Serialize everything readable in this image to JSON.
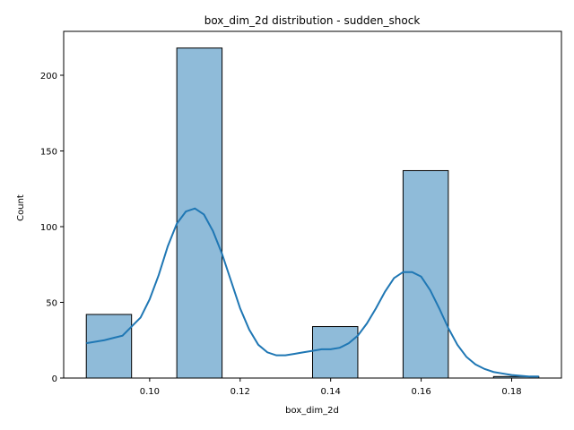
{
  "chart_data": {
    "type": "bar",
    "title": "box_dim_2d distribution - sudden_shock",
    "xlabel": "box_dim_2d",
    "ylabel": "Count",
    "xlim": [
      0.081,
      0.191
    ],
    "ylim": [
      0,
      229
    ],
    "xticks": [
      0.1,
      0.12,
      0.14,
      0.16,
      0.18
    ],
    "xtick_labels": [
      "0.10",
      "0.12",
      "0.14",
      "0.16",
      "0.18"
    ],
    "yticks": [
      0,
      50,
      100,
      150,
      200
    ],
    "ytick_labels": [
      "0",
      "50",
      "100",
      "150",
      "200"
    ],
    "bin_edges": [
      0.086,
      0.096,
      0.106,
      0.116,
      0.126,
      0.136,
      0.146,
      0.156,
      0.166,
      0.176,
      0.186
    ],
    "values": [
      42,
      0,
      218,
      0,
      0,
      34,
      0,
      137,
      0,
      1
    ],
    "kde": {
      "x": [
        0.086,
        0.09,
        0.094,
        0.098,
        0.1,
        0.102,
        0.104,
        0.106,
        0.108,
        0.11,
        0.112,
        0.114,
        0.116,
        0.118,
        0.12,
        0.122,
        0.124,
        0.126,
        0.128,
        0.13,
        0.132,
        0.134,
        0.136,
        0.138,
        0.14,
        0.142,
        0.144,
        0.146,
        0.148,
        0.15,
        0.152,
        0.154,
        0.156,
        0.158,
        0.16,
        0.162,
        0.164,
        0.166,
        0.168,
        0.17,
        0.172,
        0.174,
        0.176,
        0.178,
        0.18,
        0.182,
        0.184,
        0.186
      ],
      "y": [
        23,
        25,
        28,
        40,
        52,
        68,
        87,
        102,
        110,
        112,
        108,
        97,
        82,
        64,
        46,
        32,
        22,
        17,
        15,
        15,
        16,
        17,
        18,
        19,
        19,
        20,
        23,
        28,
        36,
        46,
        57,
        66,
        70,
        70,
        67,
        58,
        46,
        33,
        22,
        14,
        9,
        6,
        4,
        3,
        2,
        1.5,
        1,
        1
      ]
    },
    "grid": false,
    "colors": {
      "bar_fill": "#1f77b4",
      "bar_edge": "#000000",
      "kde_line": "#1f77b4"
    }
  }
}
